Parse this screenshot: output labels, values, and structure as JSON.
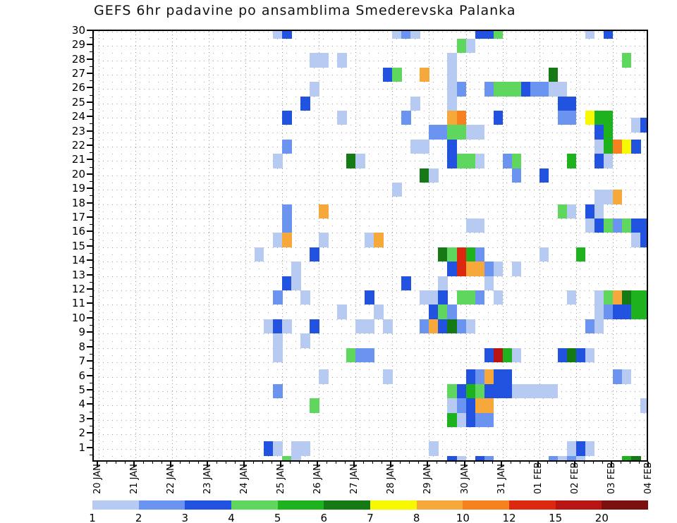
{
  "title": "GEFS 6hr padavine po ansamblima Smederevska Palanka",
  "chart_data": {
    "type": "heatmap",
    "title": "GEFS 6hr padavine po ansamblima Smederevska Palanka",
    "xlabel": "",
    "ylabel": "",
    "x_axis": {
      "tick_labels": [
        "20 JAN",
        "21 JAN",
        "22 JAN",
        "23 JAN",
        "24 JAN",
        "25 JAN",
        "26 JAN",
        "27 JAN",
        "28 JAN",
        "29 JAN",
        "30 JAN",
        "31 JAN",
        "01 FEB",
        "02 FEB",
        "03 FEB",
        "04 FEB"
      ],
      "steps_per_day": 4
    },
    "y_axis": {
      "min": 1,
      "max": 30,
      "tick_step": 1
    },
    "legend": {
      "thresholds": [
        "1",
        "2",
        "3",
        "4",
        "5",
        "6",
        "7",
        "8",
        "10",
        "12",
        "15",
        "20"
      ],
      "colors": [
        "#b7cbf2",
        "#6b93f0",
        "#2153e0",
        "#5fd75f",
        "#1eb31e",
        "#157a15",
        "#f8f800",
        "#f7a83a",
        "#f5821e",
        "#dd2810",
        "#b81414",
        "#7a1010"
      ]
    },
    "cells": [
      [
        19,
        30,
        1
      ],
      [
        20,
        30,
        3
      ],
      [
        32,
        30,
        1
      ],
      [
        33,
        30,
        2
      ],
      [
        34,
        30,
        1
      ],
      [
        41,
        30,
        3
      ],
      [
        42,
        30,
        3
      ],
      [
        43,
        30,
        4
      ],
      [
        53,
        30,
        1
      ],
      [
        55,
        30,
        3
      ],
      [
        39,
        29,
        4
      ],
      [
        40,
        29,
        1
      ],
      [
        23,
        28,
        1
      ],
      [
        24,
        28,
        1
      ],
      [
        26,
        28,
        1
      ],
      [
        38,
        28,
        1
      ],
      [
        57,
        28,
        4
      ],
      [
        31,
        27,
        3
      ],
      [
        32,
        27,
        4
      ],
      [
        35,
        27,
        8
      ],
      [
        38,
        27,
        1
      ],
      [
        49,
        27,
        6
      ],
      [
        23,
        26,
        1
      ],
      [
        38,
        26,
        1
      ],
      [
        39,
        26,
        2
      ],
      [
        42,
        26,
        2
      ],
      [
        43,
        26,
        4
      ],
      [
        44,
        26,
        4
      ],
      [
        45,
        26,
        4
      ],
      [
        46,
        26,
        3
      ],
      [
        47,
        26,
        2
      ],
      [
        48,
        26,
        2
      ],
      [
        49,
        26,
        1
      ],
      [
        50,
        26,
        1
      ],
      [
        22,
        25,
        3
      ],
      [
        34,
        25,
        1
      ],
      [
        38,
        25,
        1
      ],
      [
        50,
        25,
        3
      ],
      [
        51,
        25,
        3
      ],
      [
        20,
        24,
        3
      ],
      [
        26,
        24,
        1
      ],
      [
        33,
        24,
        2
      ],
      [
        38,
        24,
        8
      ],
      [
        39,
        24,
        9
      ],
      [
        43,
        24,
        3
      ],
      [
        50,
        24,
        2
      ],
      [
        51,
        24,
        2
      ],
      [
        53,
        24,
        7
      ],
      [
        54,
        24,
        5
      ],
      [
        55,
        24,
        5
      ],
      [
        58,
        23.5,
        1
      ],
      [
        59,
        23.5,
        3
      ],
      [
        36,
        23,
        2
      ],
      [
        37,
        23,
        2
      ],
      [
        38,
        23,
        4
      ],
      [
        39,
        23,
        4
      ],
      [
        40,
        23,
        1
      ],
      [
        41,
        23,
        1
      ],
      [
        54,
        23,
        3
      ],
      [
        55,
        23,
        5
      ],
      [
        20,
        22,
        2
      ],
      [
        34,
        22,
        1
      ],
      [
        35,
        22,
        1
      ],
      [
        38,
        22,
        3
      ],
      [
        54,
        22,
        1
      ],
      [
        55,
        22,
        5
      ],
      [
        56,
        22,
        9
      ],
      [
        57,
        22,
        7
      ],
      [
        58,
        22,
        3
      ],
      [
        19,
        21,
        1
      ],
      [
        27,
        21,
        6
      ],
      [
        28,
        21,
        1
      ],
      [
        38,
        21,
        3
      ],
      [
        39,
        21,
        4
      ],
      [
        40,
        21,
        4
      ],
      [
        41,
        21,
        1
      ],
      [
        44,
        21,
        2
      ],
      [
        45,
        21,
        4
      ],
      [
        51,
        21,
        5
      ],
      [
        54,
        21,
        3
      ],
      [
        55,
        21,
        1
      ],
      [
        35,
        20,
        6
      ],
      [
        36,
        20,
        1
      ],
      [
        45,
        20,
        2
      ],
      [
        48,
        20,
        3
      ],
      [
        32,
        19,
        1
      ],
      [
        54,
        18.5,
        1
      ],
      [
        55,
        18.5,
        1
      ],
      [
        56,
        18.5,
        8
      ],
      [
        24,
        17.5,
        8
      ],
      [
        20,
        17.5,
        2
      ],
      [
        50,
        17.5,
        4
      ],
      [
        51,
        17.5,
        1
      ],
      [
        53,
        17.5,
        3
      ],
      [
        54,
        17.5,
        1
      ],
      [
        20,
        16.5,
        2
      ],
      [
        40,
        16.5,
        1
      ],
      [
        41,
        16.5,
        1
      ],
      [
        53,
        16.5,
        1
      ],
      [
        54,
        16.5,
        3
      ],
      [
        55,
        16.5,
        4
      ],
      [
        56,
        16.5,
        2
      ],
      [
        57,
        16.5,
        4
      ],
      [
        58,
        16.5,
        3
      ],
      [
        59,
        16.5,
        3
      ],
      [
        19,
        15.5,
        1
      ],
      [
        20,
        15.5,
        8
      ],
      [
        24,
        15.5,
        1
      ],
      [
        29,
        15.5,
        1
      ],
      [
        30,
        15.5,
        8
      ],
      [
        58,
        15.5,
        1
      ],
      [
        59,
        15.5,
        3
      ],
      [
        17,
        14.5,
        1
      ],
      [
        23,
        14.5,
        3
      ],
      [
        37,
        14.5,
        6
      ],
      [
        38,
        14.5,
        4
      ],
      [
        39,
        14.5,
        10
      ],
      [
        40,
        14.5,
        5
      ],
      [
        41,
        14.5,
        2
      ],
      [
        48,
        14.5,
        1
      ],
      [
        52,
        14.5,
        5
      ],
      [
        21,
        13.5,
        1
      ],
      [
        38,
        13.5,
        3
      ],
      [
        39,
        13.5,
        10
      ],
      [
        40,
        13.5,
        8
      ],
      [
        41,
        13.5,
        8
      ],
      [
        42,
        13.5,
        2
      ],
      [
        43,
        13.5,
        1
      ],
      [
        45,
        13.5,
        1
      ],
      [
        20,
        12.5,
        3
      ],
      [
        21,
        12.5,
        1
      ],
      [
        33,
        12.5,
        3
      ],
      [
        37,
        12.5,
        1
      ],
      [
        42,
        12.5,
        1
      ],
      [
        19,
        11.5,
        2
      ],
      [
        22,
        11.5,
        1
      ],
      [
        29,
        11.5,
        3
      ],
      [
        35,
        11.5,
        1
      ],
      [
        36,
        11.5,
        1
      ],
      [
        37,
        11.5,
        3
      ],
      [
        39,
        11.5,
        4
      ],
      [
        40,
        11.5,
        4
      ],
      [
        41,
        11.5,
        2
      ],
      [
        43,
        11.5,
        1
      ],
      [
        51,
        11.5,
        1
      ],
      [
        54,
        11.5,
        1
      ],
      [
        55,
        11.5,
        4
      ],
      [
        56,
        11.5,
        8
      ],
      [
        57,
        11.5,
        6
      ],
      [
        58,
        11.5,
        5
      ],
      [
        59,
        11.5,
        5
      ],
      [
        26,
        10.5,
        1
      ],
      [
        30,
        10.5,
        1
      ],
      [
        36,
        10.5,
        3
      ],
      [
        37,
        10.5,
        4
      ],
      [
        38,
        10.5,
        2
      ],
      [
        54,
        10.5,
        1
      ],
      [
        55,
        10.5,
        2
      ],
      [
        56,
        10.5,
        3
      ],
      [
        57,
        10.5,
        3
      ],
      [
        58,
        10.5,
        5
      ],
      [
        59,
        10.5,
        5
      ],
      [
        18,
        9.5,
        1
      ],
      [
        19,
        9.5,
        3
      ],
      [
        20,
        9.5,
        1
      ],
      [
        23,
        9.5,
        3
      ],
      [
        28,
        9.5,
        1
      ],
      [
        29,
        9.5,
        1
      ],
      [
        31,
        9.5,
        1
      ],
      [
        35,
        9.5,
        2
      ],
      [
        36,
        9.5,
        8
      ],
      [
        37,
        9.5,
        3
      ],
      [
        38,
        9.5,
        6
      ],
      [
        39,
        9.5,
        2
      ],
      [
        40,
        9.5,
        1
      ],
      [
        53,
        9.5,
        2
      ],
      [
        54,
        9.5,
        1
      ],
      [
        19,
        8.5,
        1
      ],
      [
        22,
        8.5,
        1
      ],
      [
        19,
        7.5,
        1
      ],
      [
        27,
        7.5,
        4
      ],
      [
        28,
        7.5,
        2
      ],
      [
        29,
        7.5,
        2
      ],
      [
        42,
        7.5,
        3
      ],
      [
        43,
        7.5,
        11
      ],
      [
        44,
        7.5,
        5
      ],
      [
        45,
        7.5,
        1
      ],
      [
        50,
        7.5,
        3
      ],
      [
        51,
        7.5,
        6
      ],
      [
        52,
        7.5,
        3
      ],
      [
        53,
        7.5,
        1
      ],
      [
        24,
        6,
        1
      ],
      [
        31,
        6,
        1
      ],
      [
        40,
        6,
        3
      ],
      [
        41,
        6,
        2
      ],
      [
        42,
        6,
        8
      ],
      [
        43,
        6,
        3
      ],
      [
        44,
        6,
        3
      ],
      [
        56,
        6,
        2
      ],
      [
        57,
        6,
        1
      ],
      [
        19,
        5,
        2
      ],
      [
        38,
        5,
        4
      ],
      [
        39,
        5,
        3
      ],
      [
        40,
        5,
        5
      ],
      [
        41,
        5,
        4
      ],
      [
        42,
        5,
        3
      ],
      [
        43,
        5,
        3
      ],
      [
        44,
        5,
        3
      ],
      [
        45,
        5,
        1
      ],
      [
        46,
        5,
        1
      ],
      [
        47,
        5,
        1
      ],
      [
        48,
        5,
        1
      ],
      [
        49,
        5,
        1
      ],
      [
        23,
        4,
        4
      ],
      [
        38,
        4,
        1
      ],
      [
        39,
        4,
        2
      ],
      [
        40,
        4,
        3
      ],
      [
        41,
        4,
        8
      ],
      [
        42,
        4,
        8
      ],
      [
        59,
        4,
        1
      ],
      [
        38,
        3,
        5
      ],
      [
        39,
        3,
        1
      ],
      [
        40,
        3,
        3
      ],
      [
        41,
        3,
        2
      ],
      [
        42,
        3,
        2
      ],
      [
        18,
        1,
        3
      ],
      [
        19,
        1,
        1
      ],
      [
        21,
        1,
        1
      ],
      [
        22,
        1,
        1
      ],
      [
        36,
        1,
        1
      ],
      [
        51,
        1,
        1
      ],
      [
        52,
        1,
        3
      ],
      [
        53,
        1,
        1
      ],
      [
        20,
        0,
        4
      ],
      [
        21,
        0,
        1
      ],
      [
        38,
        0,
        3
      ],
      [
        39,
        0,
        1
      ],
      [
        41,
        0,
        3
      ],
      [
        42,
        0,
        2
      ],
      [
        49,
        0,
        2
      ],
      [
        50,
        0,
        1
      ],
      [
        51,
        0,
        2
      ],
      [
        52,
        0,
        1
      ],
      [
        57,
        0,
        5
      ],
      [
        58,
        0,
        6
      ]
    ]
  }
}
